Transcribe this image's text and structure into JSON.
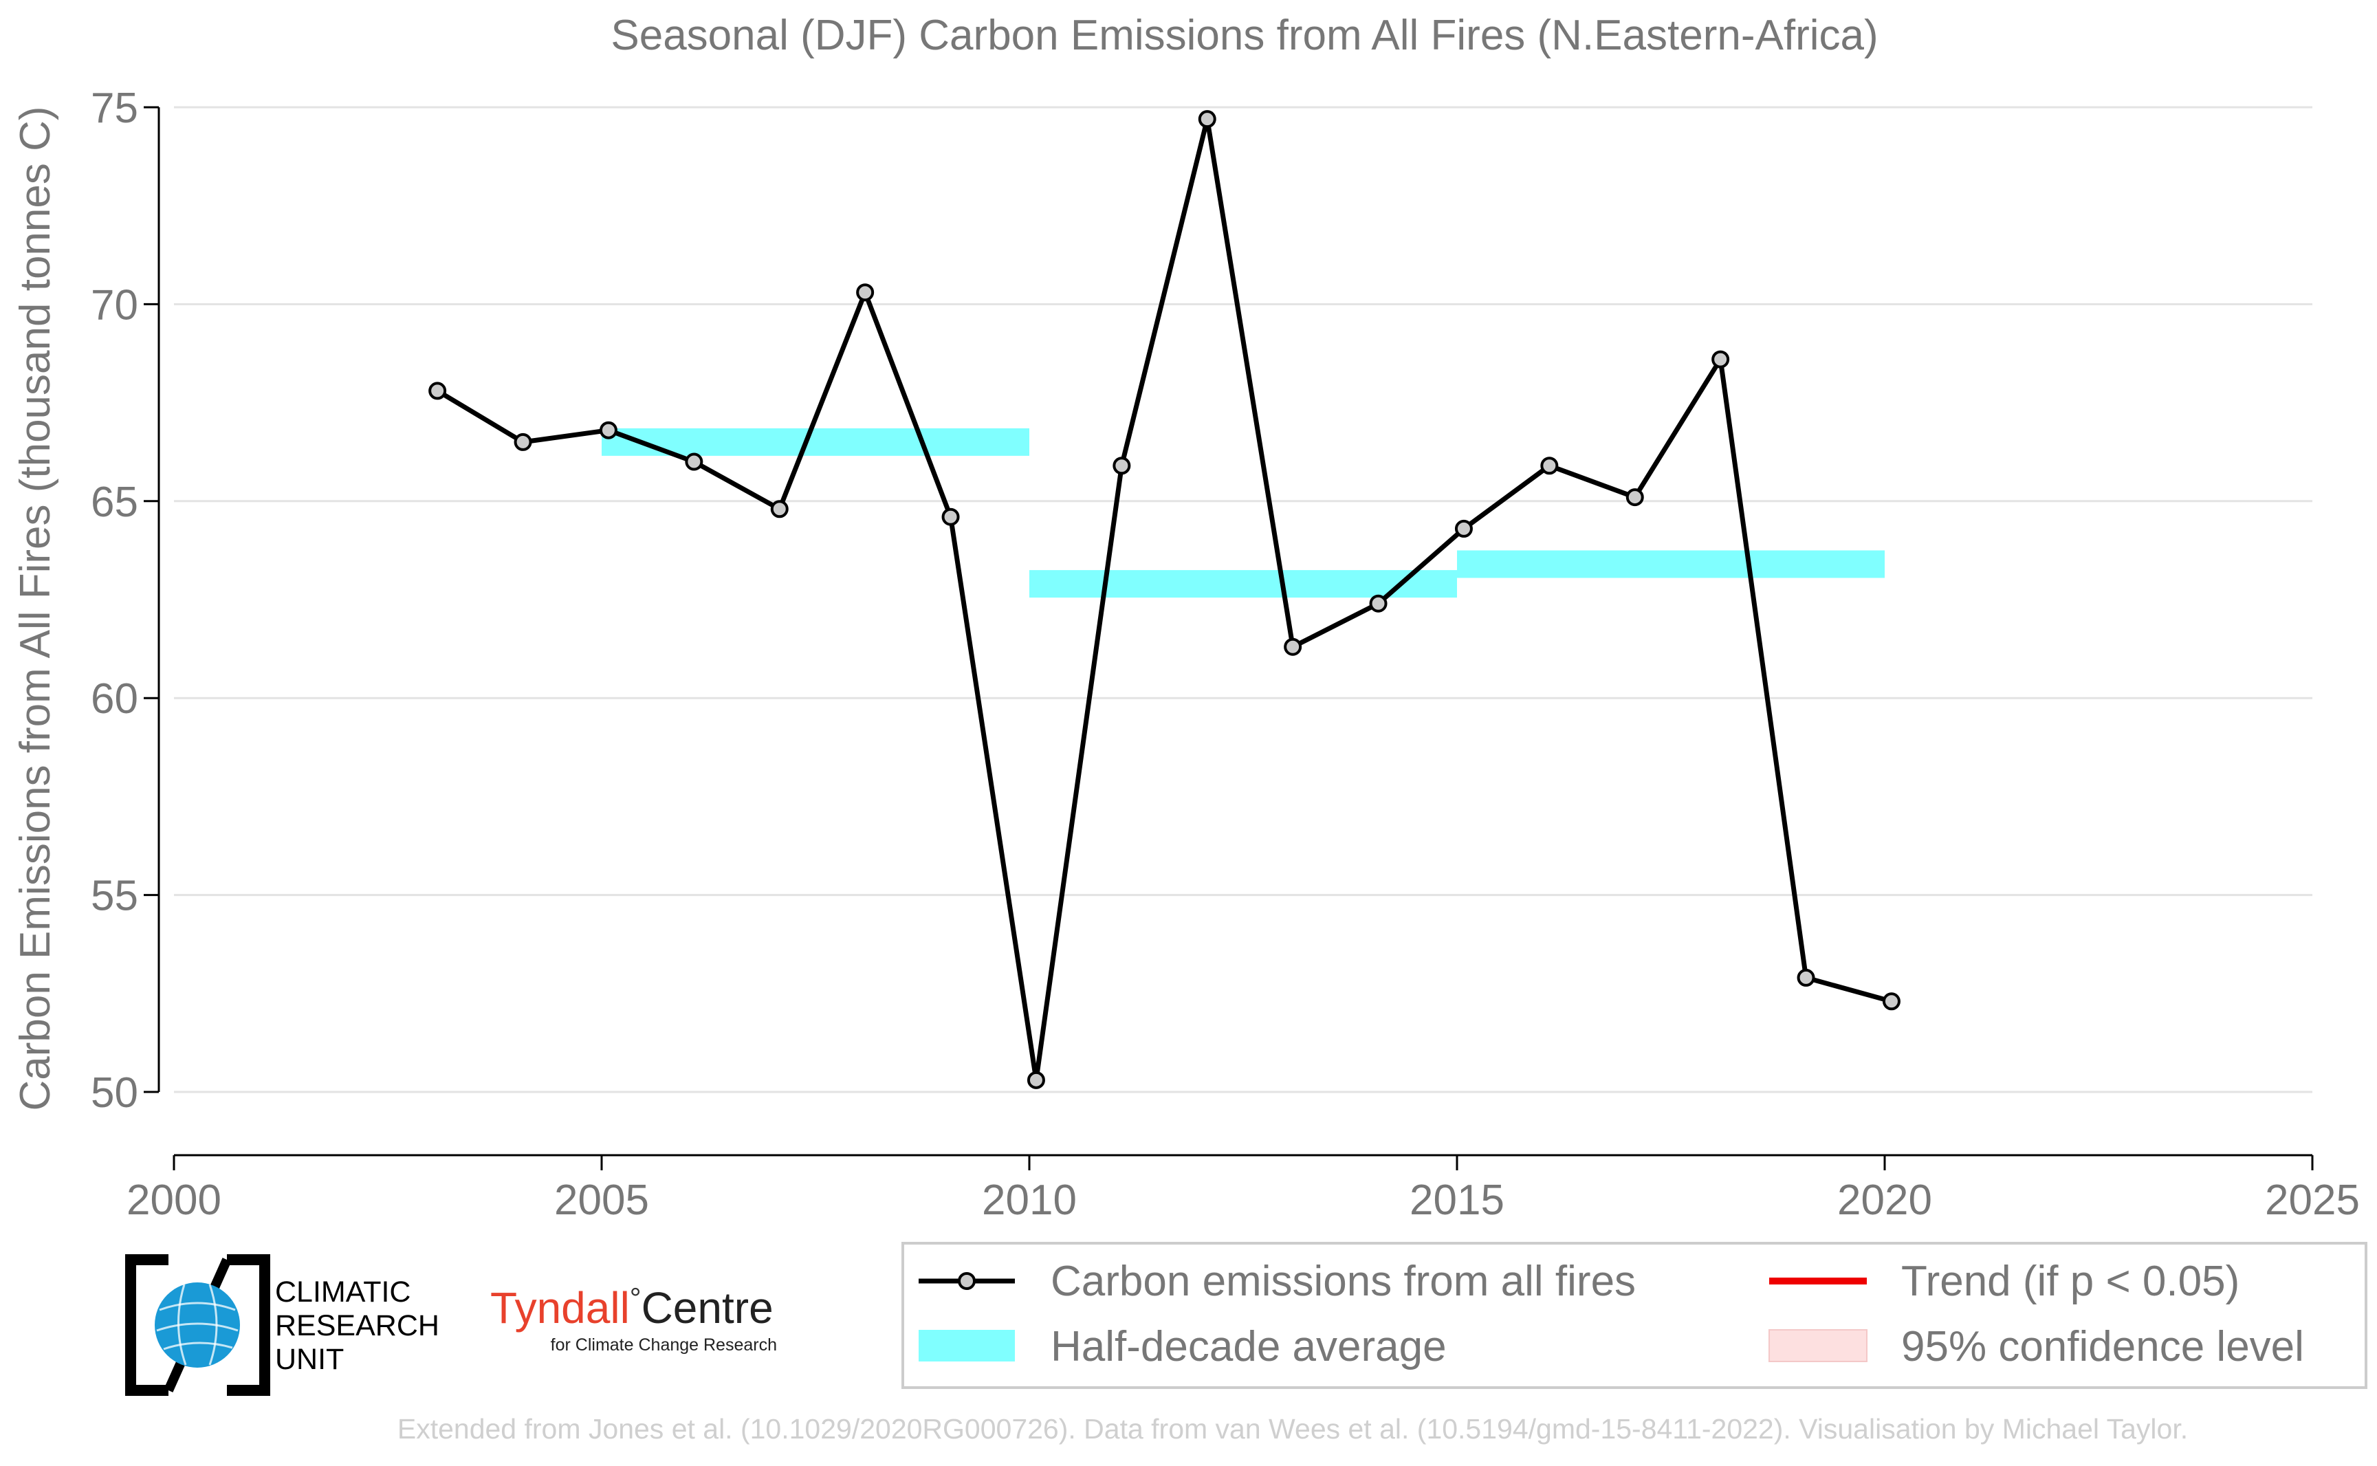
{
  "chart_data": {
    "type": "line",
    "title": "Seasonal (DJF) Carbon Emissions from All Fires (N.Eastern-Africa)",
    "xlabel": "",
    "ylabel": "Carbon Emissions from All Fires (thousand tonnes C)",
    "xlim": [
      2000,
      2025
    ],
    "ylim": [
      50,
      75
    ],
    "x_ticks": [
      "2000",
      "2005",
      "2010",
      "2015",
      "2020",
      "2025"
    ],
    "y_ticks": [
      "50",
      "55",
      "60",
      "65",
      "70",
      "75"
    ],
    "grid": "horizontal",
    "legend_placement": "bottom-right",
    "series": [
      {
        "name": "Carbon emissions from all fires",
        "color": "#000000",
        "marker_fill": "#cccccc",
        "x": [
          2003,
          2004,
          2005,
          2006,
          2007,
          2008,
          2009,
          2010,
          2011,
          2012,
          2013,
          2014,
          2015,
          2016,
          2017,
          2018,
          2019,
          2020
        ],
        "values": [
          67.8,
          66.5,
          66.8,
          66.0,
          64.8,
          70.3,
          64.6,
          50.3,
          65.9,
          74.7,
          61.3,
          62.4,
          64.3,
          65.9,
          65.1,
          68.6,
          52.9,
          52.3
        ]
      }
    ],
    "half_decade_average": {
      "name": "Half-decade average",
      "color": "#80ffff",
      "segments": [
        {
          "start": 2005,
          "end": 2010,
          "value": 66.5
        },
        {
          "start": 2010,
          "end": 2015,
          "value": 62.9
        },
        {
          "start": 2015,
          "end": 2020,
          "value": 63.4
        }
      ]
    },
    "legend": [
      {
        "label": "Carbon emissions from all fires",
        "kind": "line-marker",
        "color": "#000000"
      },
      {
        "label": "Trend (if p < 0.05)",
        "kind": "line",
        "color": "#ee0000"
      },
      {
        "label": "Half-decade average",
        "kind": "band",
        "color": "#80ffff"
      },
      {
        "label": "95% confidence level",
        "kind": "band",
        "color": "#fde0e0"
      }
    ]
  },
  "logos": {
    "cru": "CLIMATIC RESEARCH UNIT",
    "cru_lines": [
      "CLIMATIC",
      "RESEARCH",
      "UNIT"
    ],
    "tyndall_main": "Tyndall",
    "tyndall_degree": "°",
    "tyndall_centre": "Centre",
    "tyndall_sub": "for Climate Change Research"
  },
  "footer": {
    "credit": "Extended from Jones et al. (10.1029/2020RG000726). Data from van Wees et al. (10.5194/gmd-15-8411-2022). Visualisation by Michael Taylor."
  }
}
